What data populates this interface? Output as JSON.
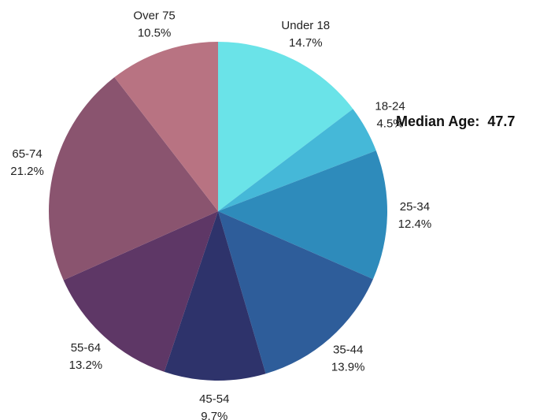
{
  "chart_data": {
    "type": "pie",
    "categories": [
      "Under 18",
      "18-24",
      "25-34",
      "35-44",
      "45-54",
      "55-64",
      "65-74",
      "Over 75"
    ],
    "values": [
      14.7,
      4.5,
      12.4,
      13.9,
      9.7,
      13.2,
      21.2,
      10.5
    ],
    "value_labels": [
      "14.7%",
      "4.5%",
      "12.4%",
      "13.9%",
      "9.7%",
      "13.2%",
      "21.2%",
      "10.5%"
    ],
    "colors": [
      "#6ae3e8",
      "#45b8d8",
      "#2e8bbb",
      "#2e5d9a",
      "#2e336b",
      "#5e3766",
      "#8a546f",
      "#b87382"
    ],
    "annotation": "Median Age:  47.7"
  }
}
